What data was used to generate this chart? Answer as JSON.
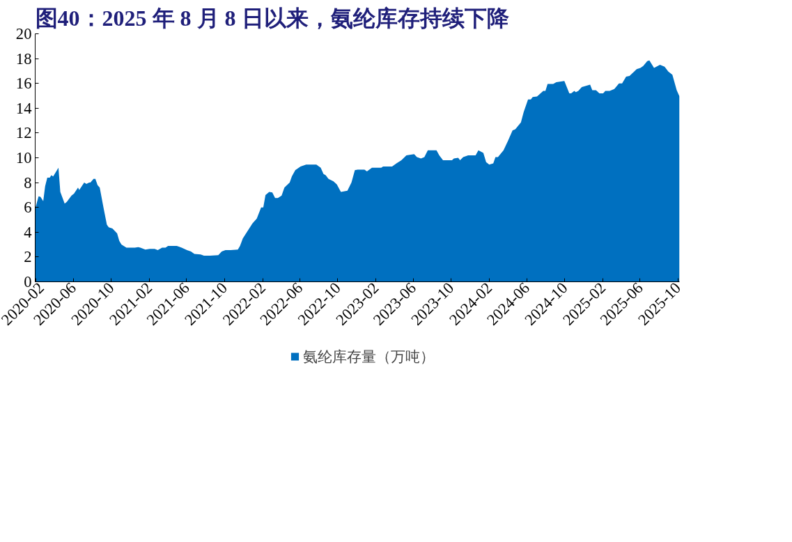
{
  "chart_data": {
    "type": "area",
    "title": "图40：2025 年 8 月 8 日以来，氨纶库存持续下降",
    "xlim": [
      "2020-01-30",
      "2025-10-06"
    ],
    "ylim": [
      0,
      20
    ],
    "xticks": [
      "2020-02",
      "2020-06",
      "2020-10",
      "2021-02",
      "2021-06",
      "2021-10",
      "2022-02",
      "2022-06",
      "2022-10",
      "2023-02",
      "2023-06",
      "2023-10",
      "2024-02",
      "2024-06",
      "2024-10",
      "2025-02",
      "2025-06",
      "2025-10"
    ],
    "yticks": [
      0,
      2,
      4,
      6,
      8,
      10,
      12,
      14,
      16,
      18,
      20
    ],
    "grid": false,
    "legend": "bottom",
    "series": [
      {
        "name": "氨纶库存量（万吨）",
        "color": "#0070c0",
        "x": [
          "2020-01-30",
          "2020-02-10",
          "2020-02-16",
          "2020-02-25",
          "2020-03-02",
          "2020-03-09",
          "2020-03-17",
          "2020-03-22",
          "2020-03-28",
          "2020-04-14",
          "2020-04-20",
          "2020-05-04",
          "2020-05-11",
          "2020-05-26",
          "2020-06-03",
          "2020-06-16",
          "2020-06-20",
          "2020-07-06",
          "2020-07-13",
          "2020-07-22",
          "2020-07-26",
          "2020-08-05",
          "2020-08-11",
          "2020-08-18",
          "2020-08-25",
          "2020-09-06",
          "2020-09-17",
          "2020-09-23",
          "2020-10-05",
          "2020-10-20",
          "2020-10-27",
          "2020-11-03",
          "2020-11-19",
          "2020-12-16",
          "2020-12-27",
          "2021-01-03",
          "2021-01-19",
          "2021-02-02",
          "2021-02-18",
          "2021-02-28",
          "2021-03-14",
          "2021-03-25",
          "2021-04-02",
          "2021-04-17",
          "2021-04-30",
          "2021-05-16",
          "2021-06-02",
          "2021-06-15",
          "2021-06-26",
          "2021-07-16",
          "2021-07-27",
          "2021-08-15",
          "2021-09-11",
          "2021-09-22",
          "2021-10-04",
          "2021-10-21",
          "2021-11-13",
          "2021-11-20",
          "2021-11-29",
          "2021-12-17",
          "2021-12-30",
          "2022-01-13",
          "2022-01-27",
          "2022-02-03",
          "2022-02-10",
          "2022-02-22",
          "2022-03-04",
          "2022-03-13",
          "2022-03-22",
          "2022-04-03",
          "2022-04-12",
          "2022-04-29",
          "2022-05-06",
          "2022-05-17",
          "2022-06-03",
          "2022-06-21",
          "2022-07-24",
          "2022-08-07",
          "2022-08-16",
          "2022-08-23",
          "2022-09-01",
          "2022-09-17",
          "2022-09-28",
          "2022-10-11",
          "2022-11-01",
          "2022-11-14",
          "2022-11-25",
          "2022-12-04",
          "2022-12-26",
          "2023-01-03",
          "2023-01-19",
          "2023-02-18",
          "2023-02-24",
          "2023-03-25",
          "2023-04-08",
          "2023-04-24",
          "2023-05-10",
          "2023-06-04",
          "2023-06-13",
          "2023-06-26",
          "2023-07-07",
          "2023-07-18",
          "2023-08-15",
          "2023-08-24",
          "2023-09-05",
          "2023-10-04",
          "2023-10-10",
          "2023-10-24",
          "2023-10-30",
          "2023-11-09",
          "2023-11-25",
          "2023-12-19",
          "2023-12-28",
          "2024-01-13",
          "2024-01-22",
          "2024-02-01",
          "2024-02-14",
          "2024-02-21",
          "2024-02-29",
          "2024-03-18",
          "2024-04-01",
          "2024-04-16",
          "2024-04-25",
          "2024-05-13",
          "2024-05-22",
          "2024-06-05",
          "2024-06-14",
          "2024-06-20",
          "2024-07-04",
          "2024-07-24",
          "2024-07-31",
          "2024-08-07",
          "2024-08-25",
          "2024-09-04",
          "2024-09-30",
          "2024-10-16",
          "2024-10-22",
          "2024-11-01",
          "2024-11-06",
          "2024-11-14",
          "2024-11-25",
          "2024-12-22",
          "2024-12-29",
          "2025-01-10",
          "2025-01-21",
          "2025-02-02",
          "2025-02-09",
          "2025-02-23",
          "2025-03-10",
          "2025-03-25",
          "2025-04-04",
          "2025-04-17",
          "2025-04-28",
          "2025-05-21",
          "2025-06-02",
          "2025-06-11",
          "2025-06-24",
          "2025-07-01",
          "2025-07-16",
          "2025-08-04",
          "2025-08-19",
          "2025-08-31",
          "2025-09-13",
          "2025-09-27",
          "2025-10-06"
        ],
        "values": [
          5.9,
          6.9,
          6.85,
          6.5,
          7.7,
          8.4,
          8.4,
          8.6,
          8.5,
          9.2,
          7.25,
          6.3,
          6.45,
          6.95,
          7.1,
          7.6,
          7.4,
          8.0,
          7.9,
          8.0,
          8.0,
          8.3,
          8.3,
          7.8,
          7.6,
          6.0,
          4.6,
          4.4,
          4.3,
          3.9,
          3.3,
          3.0,
          2.75,
          2.75,
          2.8,
          2.75,
          2.6,
          2.65,
          2.65,
          2.55,
          2.75,
          2.75,
          2.9,
          2.9,
          2.9,
          2.75,
          2.55,
          2.45,
          2.25,
          2.2,
          2.1,
          2.1,
          2.15,
          2.45,
          2.55,
          2.55,
          2.6,
          2.9,
          3.5,
          4.2,
          4.7,
          5.1,
          6.0,
          6.0,
          7.0,
          7.25,
          7.2,
          6.75,
          6.75,
          6.95,
          7.6,
          8.0,
          8.5,
          9.0,
          9.3,
          9.45,
          9.45,
          9.2,
          8.7,
          8.6,
          8.3,
          8.1,
          7.85,
          7.25,
          7.35,
          8.0,
          9.0,
          9.05,
          9.05,
          8.9,
          9.2,
          9.2,
          9.3,
          9.3,
          9.55,
          9.8,
          10.2,
          10.3,
          10.05,
          9.95,
          10.05,
          10.6,
          10.6,
          10.2,
          9.8,
          9.8,
          9.95,
          10.0,
          9.8,
          10.05,
          10.2,
          10.2,
          10.6,
          10.4,
          9.65,
          9.45,
          9.55,
          10.05,
          10.05,
          10.6,
          11.35,
          12.2,
          12.3,
          12.85,
          13.7,
          14.7,
          14.7,
          14.9,
          14.95,
          15.4,
          15.4,
          15.95,
          15.95,
          16.1,
          16.2,
          15.2,
          15.2,
          15.4,
          15.3,
          15.4,
          15.7,
          15.9,
          15.45,
          15.45,
          15.2,
          15.2,
          15.4,
          15.4,
          15.55,
          16.0,
          16.0,
          16.55,
          16.6,
          17.15,
          17.25,
          17.4,
          17.8,
          17.85,
          17.25,
          17.5,
          17.35,
          16.95,
          16.7,
          15.45,
          14.95
        ]
      }
    ]
  }
}
